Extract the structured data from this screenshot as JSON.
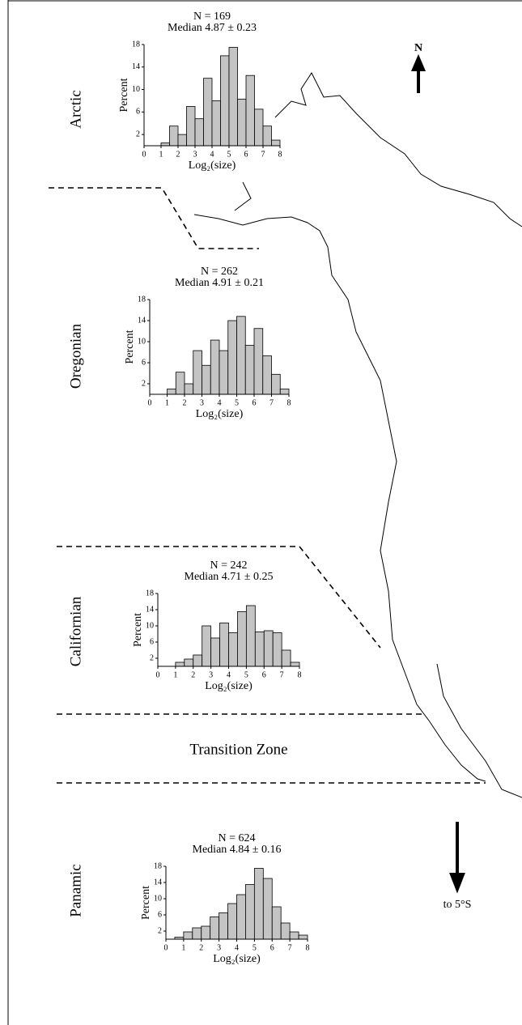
{
  "chart_data": [
    {
      "type": "histogram",
      "region": "Arctic",
      "title": "N = 169",
      "subtitle": "Median 4.87 ± 0.23",
      "ylabel": "Percent",
      "xlabel": "Log₂(size)",
      "color": "#c4c4c4",
      "bins": [
        0,
        0.5,
        1,
        1.5,
        2,
        2.5,
        3,
        3.5,
        4,
        4.5,
        5,
        5.5,
        6,
        6.5,
        7,
        7.5,
        8
      ],
      "values": [
        0,
        0,
        0.5,
        3.5,
        2,
        7,
        4.8,
        12,
        8,
        16,
        17.5,
        8.3,
        12.5,
        6.5,
        3.5,
        1
      ],
      "xlim": [
        0,
        8
      ],
      "ylim": [
        0,
        18
      ],
      "xticks": [
        0,
        1,
        2,
        3,
        4,
        5,
        6,
        7,
        8
      ],
      "yticks": [
        2,
        6,
        10,
        14,
        18
      ]
    },
    {
      "type": "histogram",
      "region": "Oregonian",
      "title": "N = 262",
      "subtitle": "Median 4.91 ± 0.21",
      "ylabel": "Percent",
      "xlabel": "Log₂(size)",
      "color": "#c4c4c4",
      "bins": [
        0,
        0.5,
        1,
        1.5,
        2,
        2.5,
        3,
        3.5,
        4,
        4.5,
        5,
        5.5,
        6,
        6.5,
        7,
        7.5,
        8
      ],
      "values": [
        0,
        0,
        1,
        4.2,
        2,
        8.3,
        5.5,
        10.3,
        8.3,
        14,
        14.8,
        9.3,
        12.5,
        7.3,
        3.8,
        1
      ],
      "xlim": [
        0,
        8
      ],
      "ylim": [
        0,
        18
      ],
      "xticks": [
        0,
        1,
        2,
        3,
        4,
        5,
        6,
        7,
        8
      ],
      "yticks": [
        2,
        6,
        10,
        14,
        18
      ]
    },
    {
      "type": "histogram",
      "region": "Californian",
      "title": "N = 242",
      "subtitle": "Median 4.71 ± 0.25",
      "ylabel": "Percent",
      "xlabel": "Log₂(size)",
      "color": "#c4c4c4",
      "bins": [
        0,
        0.5,
        1,
        1.5,
        2,
        2.5,
        3,
        3.5,
        4,
        4.5,
        5,
        5.5,
        6,
        6.5,
        7,
        7.5,
        8
      ],
      "values": [
        0,
        0,
        1,
        1.8,
        2.8,
        10,
        7,
        10.7,
        8.3,
        13.5,
        15,
        8.5,
        8.8,
        8.3,
        4,
        1
      ],
      "xlim": [
        0,
        8
      ],
      "ylim": [
        0,
        18
      ],
      "xticks": [
        0,
        1,
        2,
        3,
        4,
        5,
        6,
        7,
        8
      ],
      "yticks": [
        2,
        6,
        10,
        14,
        18
      ]
    },
    {
      "type": "histogram",
      "region": "Panamic",
      "title": "N = 624",
      "subtitle": "Median 4.84 ± 0.16",
      "ylabel": "Percent",
      "xlabel": "Log₂(size)",
      "color": "#c4c4c4",
      "bins": [
        0,
        0.5,
        1,
        1.5,
        2,
        2.5,
        3,
        3.5,
        4,
        4.5,
        5,
        5.5,
        6,
        6.5,
        7,
        7.5,
        8
      ],
      "values": [
        0,
        0.5,
        1.8,
        2.8,
        3.2,
        5.5,
        6.5,
        8.8,
        11,
        13.5,
        17.5,
        15,
        8,
        4,
        1.8,
        1
      ],
      "xlim": [
        0,
        8
      ],
      "ylim": [
        0,
        18
      ],
      "xticks": [
        0,
        1,
        2,
        3,
        4,
        5,
        6,
        7,
        8
      ],
      "yticks": [
        2,
        6,
        10,
        14,
        18
      ]
    }
  ],
  "map": {
    "north_label": "N",
    "transition_label": "Transition Zone",
    "south_note": "to 5°S"
  }
}
